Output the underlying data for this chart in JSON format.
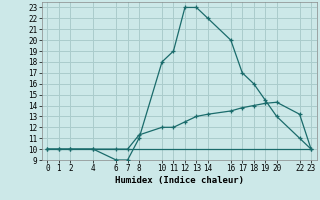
{
  "xlabel": "Humidex (Indice chaleur)",
  "bg_color": "#cce8e8",
  "grid_color": "#aacccc",
  "line_color": "#1a6b6b",
  "xlim": [
    -0.5,
    23.5
  ],
  "ylim": [
    9,
    23.5
  ],
  "xticks": [
    0,
    1,
    2,
    4,
    6,
    7,
    8,
    10,
    11,
    12,
    13,
    14,
    16,
    17,
    18,
    19,
    20,
    22,
    23
  ],
  "yticks": [
    9,
    10,
    11,
    12,
    13,
    14,
    15,
    16,
    17,
    18,
    19,
    20,
    21,
    22,
    23
  ],
  "curve1_x": [
    0,
    1,
    2,
    4,
    6,
    7,
    8,
    10,
    11,
    12,
    13,
    14,
    16,
    17,
    18,
    19,
    20,
    22,
    23
  ],
  "curve1_y": [
    10,
    10,
    10,
    10,
    9,
    9,
    11,
    18,
    19,
    23,
    23,
    22,
    20,
    17,
    16,
    14.5,
    13,
    11,
    10
  ],
  "curve2_x": [
    0,
    1,
    2,
    4,
    6,
    7,
    8,
    10,
    11,
    12,
    13,
    14,
    16,
    17,
    18,
    19,
    20,
    22,
    23
  ],
  "curve2_y": [
    10,
    10,
    10,
    10,
    10,
    10,
    11.3,
    12,
    12,
    12.5,
    13,
    13.2,
    13.5,
    13.8,
    14,
    14.2,
    14.3,
    13.2,
    10
  ],
  "curve3_x": [
    0,
    23
  ],
  "curve3_y": [
    10,
    10
  ]
}
